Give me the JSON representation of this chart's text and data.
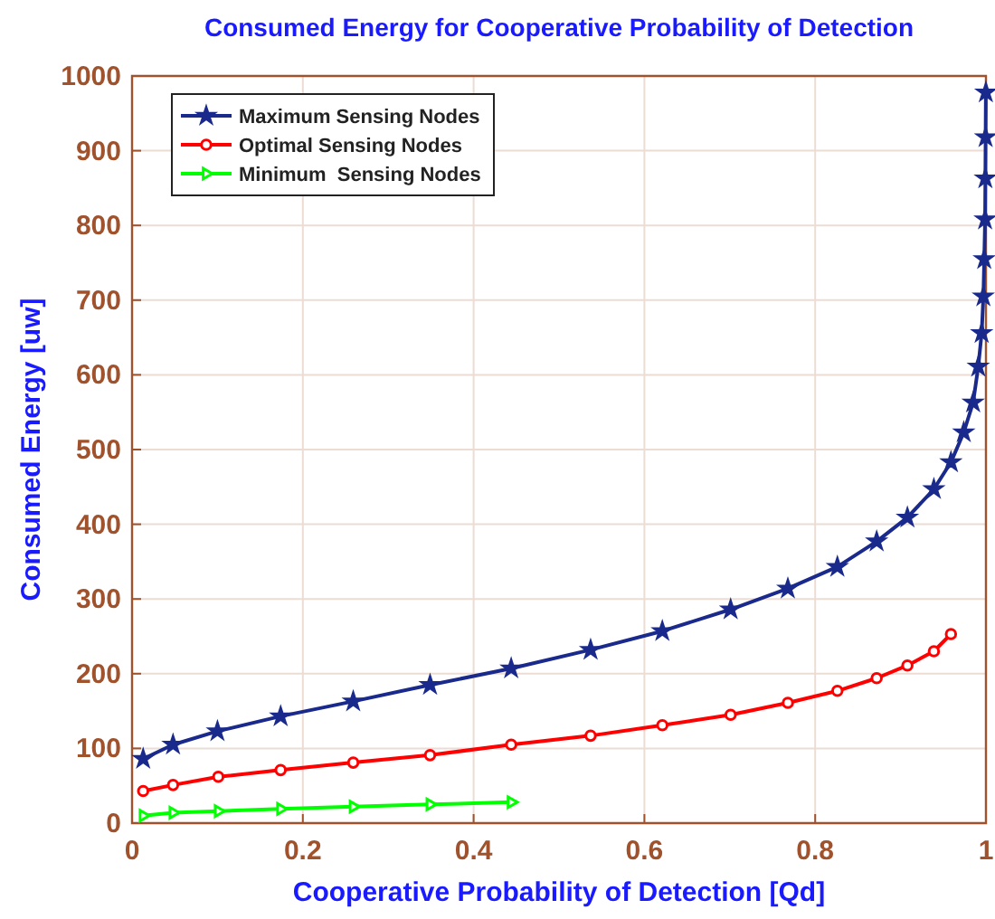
{
  "chart_data": {
    "type": "line",
    "title": "Consumed Energy for Cooperative Probability of Detection",
    "xlabel": "Cooperative Probability of Detection [Qd]",
    "ylabel": "Consumed Energy [uw]",
    "xlim": [
      0,
      1
    ],
    "ylim": [
      0,
      1000
    ],
    "xticks": [
      0,
      0.2,
      0.4,
      0.6,
      0.8,
      1
    ],
    "yticks": [
      0,
      100,
      200,
      300,
      400,
      500,
      600,
      700,
      800,
      900,
      1000
    ],
    "grid": true,
    "legend": "top left",
    "line_style": "solid",
    "series": [
      {
        "name": "Maximum Sensing Nodes",
        "color": "#1a2a8c",
        "marker": "star",
        "x": [
          0.013,
          0.048,
          0.1,
          0.174,
          0.259,
          0.349,
          0.444,
          0.537,
          0.621,
          0.701,
          0.768,
          0.826,
          0.872,
          0.908,
          0.939,
          0.959,
          0.974,
          0.985,
          0.991,
          0.995,
          0.997,
          0.998,
          0.999,
          0.9993,
          0.9996,
          0.9999
        ],
        "values": [
          86,
          105,
          123,
          143,
          163,
          185,
          207,
          232,
          257,
          286,
          314,
          343,
          377,
          409,
          447,
          483,
          523,
          563,
          611,
          656,
          705,
          755,
          808,
          863,
          918,
          978
        ]
      },
      {
        "name": "Optimal Sensing Nodes",
        "color": "#ff0000",
        "marker": "circle",
        "x": [
          0.013,
          0.048,
          0.101,
          0.174,
          0.259,
          0.349,
          0.444,
          0.537,
          0.621,
          0.701,
          0.768,
          0.826,
          0.872,
          0.908,
          0.939,
          0.959
        ],
        "values": [
          43,
          51,
          62,
          71,
          81,
          91,
          105,
          117,
          131,
          145,
          161,
          177,
          194,
          211,
          230,
          253
        ]
      },
      {
        "name": "Minimum  Sensing Nodes",
        "color": "#00ff00",
        "marker": "triangle",
        "x": [
          0.013,
          0.048,
          0.101,
          0.174,
          0.259,
          0.349,
          0.444
        ],
        "values": [
          10,
          14,
          16,
          19,
          22,
          25,
          28
        ]
      }
    ]
  }
}
